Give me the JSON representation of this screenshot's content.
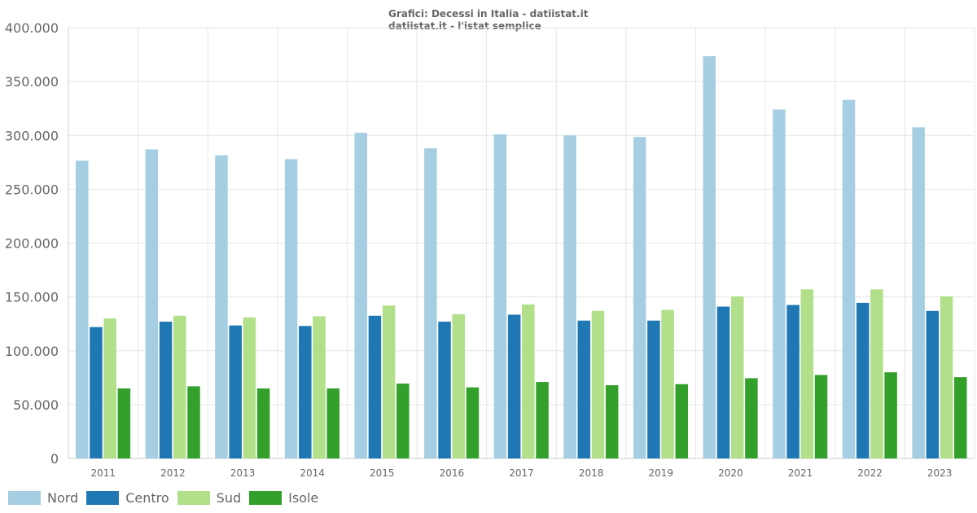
{
  "header": {
    "title": "Grafici: Decessi in Italia - datiistat.it",
    "subtitle": "datiistat.it - l'istat semplice"
  },
  "chart_data": {
    "type": "bar",
    "title": "Grafici: Decessi in Italia - datiistat.it",
    "subtitle": "datiistat.it - l'istat semplice",
    "xlabel": "",
    "ylabel": "",
    "ylim": [
      0,
      400000
    ],
    "y_ticks": [
      0,
      50000,
      100000,
      150000,
      200000,
      250000,
      300000,
      350000,
      400000
    ],
    "y_tick_labels": [
      "0",
      "50.000",
      "100.000",
      "150.000",
      "200.000",
      "250.000",
      "300.000",
      "350.000",
      "400.000"
    ],
    "categories": [
      "2011",
      "2012",
      "2013",
      "2014",
      "2015",
      "2016",
      "2017",
      "2018",
      "2019",
      "2020",
      "2021",
      "2022",
      "2023"
    ],
    "grid": true,
    "legend_position": "bottom-left",
    "series": [
      {
        "name": "Nord",
        "color": "#a6cee3",
        "values": [
          276500,
          287000,
          281500,
          278000,
          302500,
          288000,
          301000,
          300000,
          298500,
          373500,
          324000,
          333000,
          307500
        ]
      },
      {
        "name": "Centro",
        "color": "#1f78b4",
        "values": [
          122000,
          127000,
          123500,
          123000,
          132500,
          127000,
          133500,
          128000,
          128000,
          141000,
          142500,
          144500,
          137000
        ]
      },
      {
        "name": "Sud",
        "color": "#b2df8a",
        "values": [
          130000,
          132500,
          131000,
          132000,
          142000,
          134000,
          143000,
          137000,
          138000,
          150500,
          157000,
          157000,
          150500
        ]
      },
      {
        "name": "Isole",
        "color": "#33a02c",
        "values": [
          65000,
          67000,
          65000,
          65000,
          69500,
          66000,
          71000,
          68000,
          69000,
          74500,
          77500,
          80000,
          75500
        ]
      }
    ]
  }
}
